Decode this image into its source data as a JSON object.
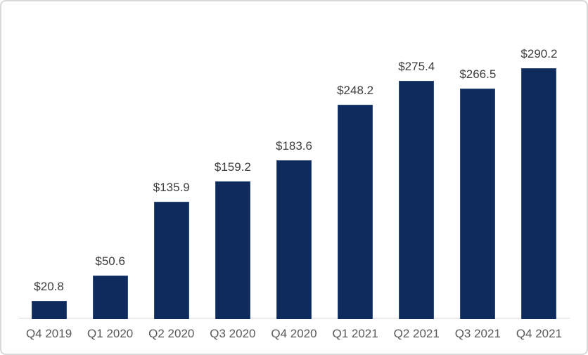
{
  "chart": {
    "bar_color": "#0f2a5d",
    "bar_edge_color": "#2f4e7f",
    "axis_line_color": "#d9d9d9",
    "value_label_color": "#3d3d3d",
    "tick_label_color": "#595959",
    "frame_border_color": "#d9d9d9",
    "background_color": "#ffffff"
  },
  "chart_data": {
    "type": "bar",
    "title": "",
    "xlabel": "",
    "ylabel": "",
    "categories": [
      "Q4 2019",
      "Q1 2020",
      "Q2 2020",
      "Q3 2020",
      "Q4 2020",
      "Q1 2021",
      "Q2 2021",
      "Q3 2021",
      "Q4 2021"
    ],
    "values": [
      20.8,
      50.6,
      135.9,
      159.2,
      183.6,
      248.2,
      275.4,
      266.5,
      290.2
    ],
    "data_labels": [
      "$20.8",
      "$50.6",
      "$135.9",
      "$159.2",
      "$183.6",
      "$248.2",
      "$275.4",
      "$266.5",
      "$290.2"
    ],
    "ylim": [
      0,
      300
    ],
    "grid": false,
    "legend": false,
    "y_axis_visible": false,
    "x_axis_line": true
  }
}
